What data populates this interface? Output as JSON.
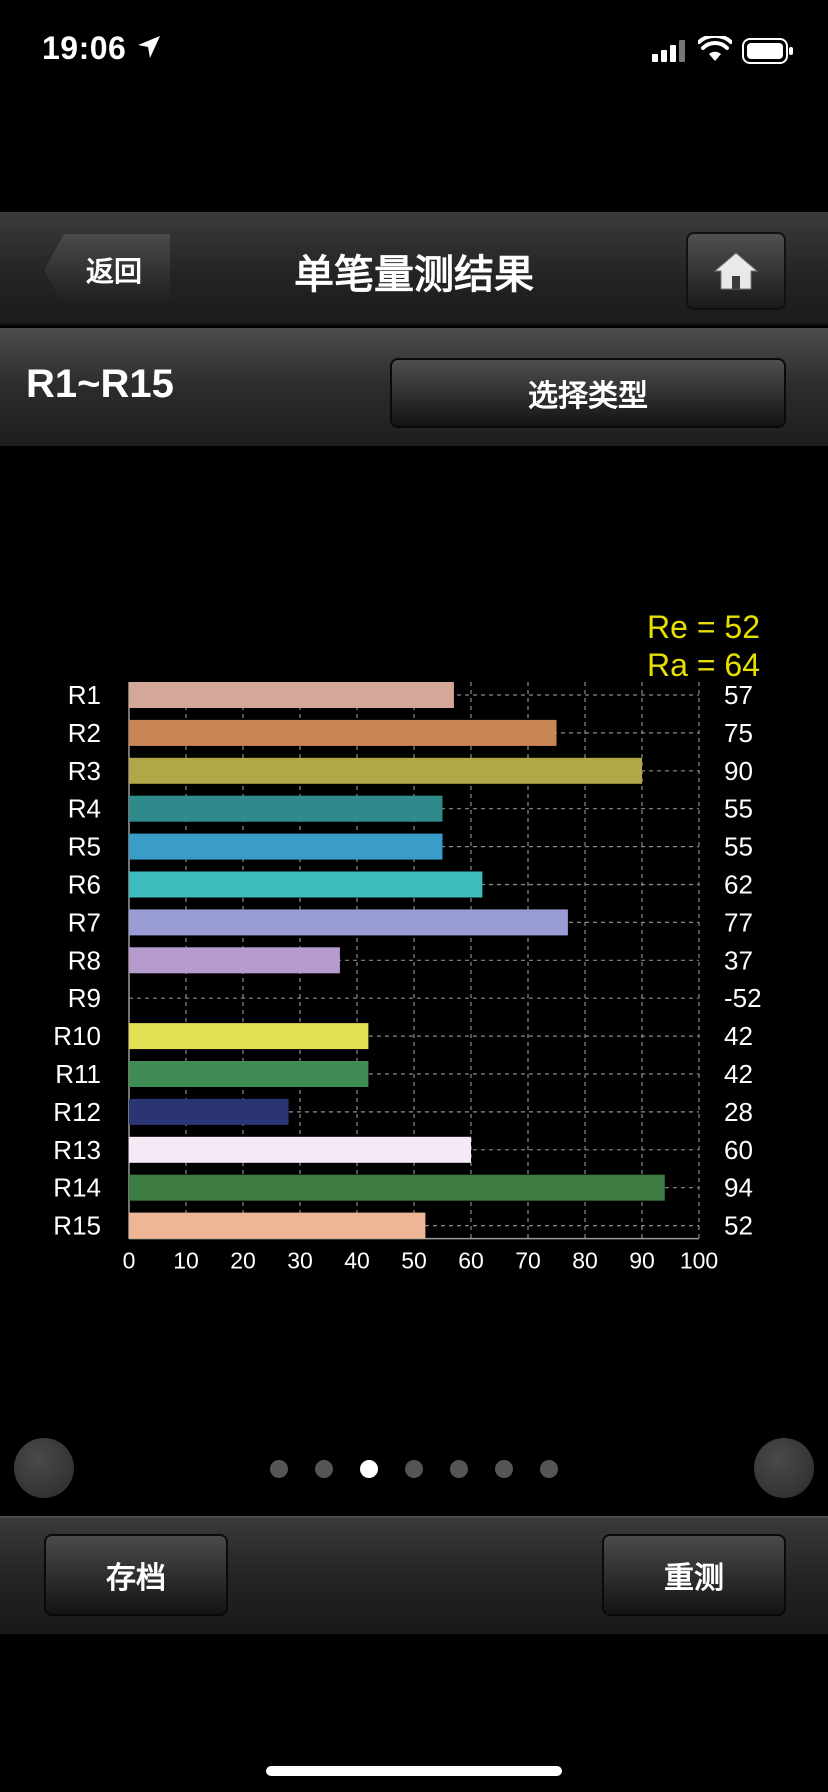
{
  "status_bar": {
    "time": "19:06"
  },
  "nav": {
    "back_label": "返回",
    "title": "单笔量测结果"
  },
  "sub_header": {
    "title": "R1~R15",
    "select_type_label": "选择类型"
  },
  "chart_data": {
    "type": "bar",
    "orientation": "horizontal",
    "categories": [
      "R1",
      "R2",
      "R3",
      "R4",
      "R5",
      "R6",
      "R7",
      "R8",
      "R9",
      "R10",
      "R11",
      "R12",
      "R13",
      "R14",
      "R15"
    ],
    "values": [
      57,
      75,
      90,
      55,
      55,
      62,
      77,
      37,
      -52,
      42,
      42,
      28,
      60,
      94,
      52
    ],
    "value_labels": [
      "57",
      "75",
      "90",
      "55",
      "55",
      "62",
      "77",
      "37",
      "-52",
      "42",
      "42",
      "28",
      "60",
      "94",
      "52"
    ],
    "colors": [
      "#d4a898",
      "#c98555",
      "#b0a848",
      "#2f8a8c",
      "#3a9cc8",
      "#3cbcbc",
      "#9a9cd6",
      "#b69cce",
      "#000000",
      "#e2e052",
      "#3f8c55",
      "#2b3574",
      "#f4e9f4",
      "#3c7c42",
      "#eeb694"
    ],
    "xlim": [
      0,
      100
    ],
    "xticks": [
      0,
      10,
      20,
      30,
      40,
      50,
      60,
      70,
      80,
      90,
      100
    ],
    "grid": true,
    "annotations": [
      "Re = 52",
      "Ra = 64"
    ],
    "annotation_color": "#e6e000"
  },
  "pager": {
    "page_count": 7,
    "active_index": 2
  },
  "bottom": {
    "save_label": "存档",
    "remeasure_label": "重测"
  }
}
